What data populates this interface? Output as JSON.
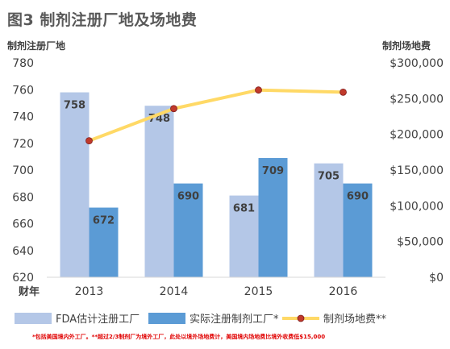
{
  "title": "图3 制剂注册厂地及场地费",
  "footnote": "*包括美国境内外工厂。**超过2/3制剂厂为境外工厂，此处以境外场地费计，美国境内场地费比境外收费低$15,000",
  "chart_data": {
    "type": "bar",
    "categories": [
      "2013",
      "2014",
      "2015",
      "2016"
    ],
    "x_prefix": "财年",
    "ylabel_left": "制剂注册厂地",
    "ylabel_right": "制剂场地费",
    "ylim_left": [
      620,
      780
    ],
    "yticks_left": [
      620,
      640,
      660,
      680,
      700,
      720,
      740,
      760,
      780
    ],
    "ylim_right": [
      0,
      300000
    ],
    "yticks_right": [
      "$0",
      "$50,000",
      "$100,000",
      "$150,000",
      "$200,000",
      "$250,000",
      "$300,000"
    ],
    "series": [
      {
        "name": "FDA估计注册工厂",
        "kind": "bar",
        "axis": "left",
        "color": "#b4c7e7",
        "values": [
          758,
          748,
          681,
          705
        ],
        "labels": [
          "758",
          "748",
          "681",
          "705"
        ]
      },
      {
        "name": "实际注册制剂工厂*",
        "kind": "bar",
        "axis": "left",
        "color": "#5b9bd5",
        "values": [
          672,
          690,
          709,
          690
        ],
        "labels": [
          "672",
          "690",
          "709",
          "690"
        ]
      },
      {
        "name": "制剂场地费**",
        "kind": "line",
        "axis": "right",
        "color": "#ffd966",
        "marker_color": "#c0392b",
        "values": [
          191000,
          236000,
          262000,
          259000
        ]
      }
    ],
    "grid": false,
    "legend_position": "bottom"
  }
}
